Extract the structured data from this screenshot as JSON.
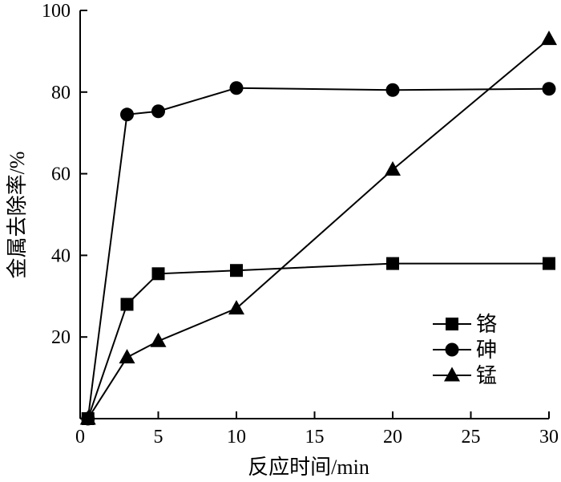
{
  "chart_data": {
    "type": "line",
    "title": "",
    "xlabel": "反应时间/min",
    "ylabel": "金属去除率/%",
    "xlim": [
      0,
      30
    ],
    "ylim": [
      0,
      100
    ],
    "xticks": [
      0,
      5,
      10,
      15,
      20,
      25,
      30
    ],
    "yticks": [
      20,
      40,
      60,
      80,
      100
    ],
    "grid": false,
    "legend_position": "bottom-right",
    "series": [
      {
        "name": "铬",
        "marker": "square",
        "color": "#000000",
        "x": [
          0.5,
          3,
          5,
          10,
          20,
          30
        ],
        "y": [
          0,
          28,
          35.5,
          36.3,
          38,
          38
        ]
      },
      {
        "name": "砷",
        "marker": "circle",
        "color": "#000000",
        "x": [
          0.5,
          3,
          5,
          10,
          20,
          30
        ],
        "y": [
          0,
          74.5,
          75.3,
          81,
          80.5,
          80.8
        ]
      },
      {
        "name": "锰",
        "marker": "triangle",
        "color": "#000000",
        "x": [
          0.5,
          3,
          5,
          10,
          20,
          30
        ],
        "y": [
          0,
          15,
          19,
          27,
          61,
          93
        ]
      }
    ]
  }
}
